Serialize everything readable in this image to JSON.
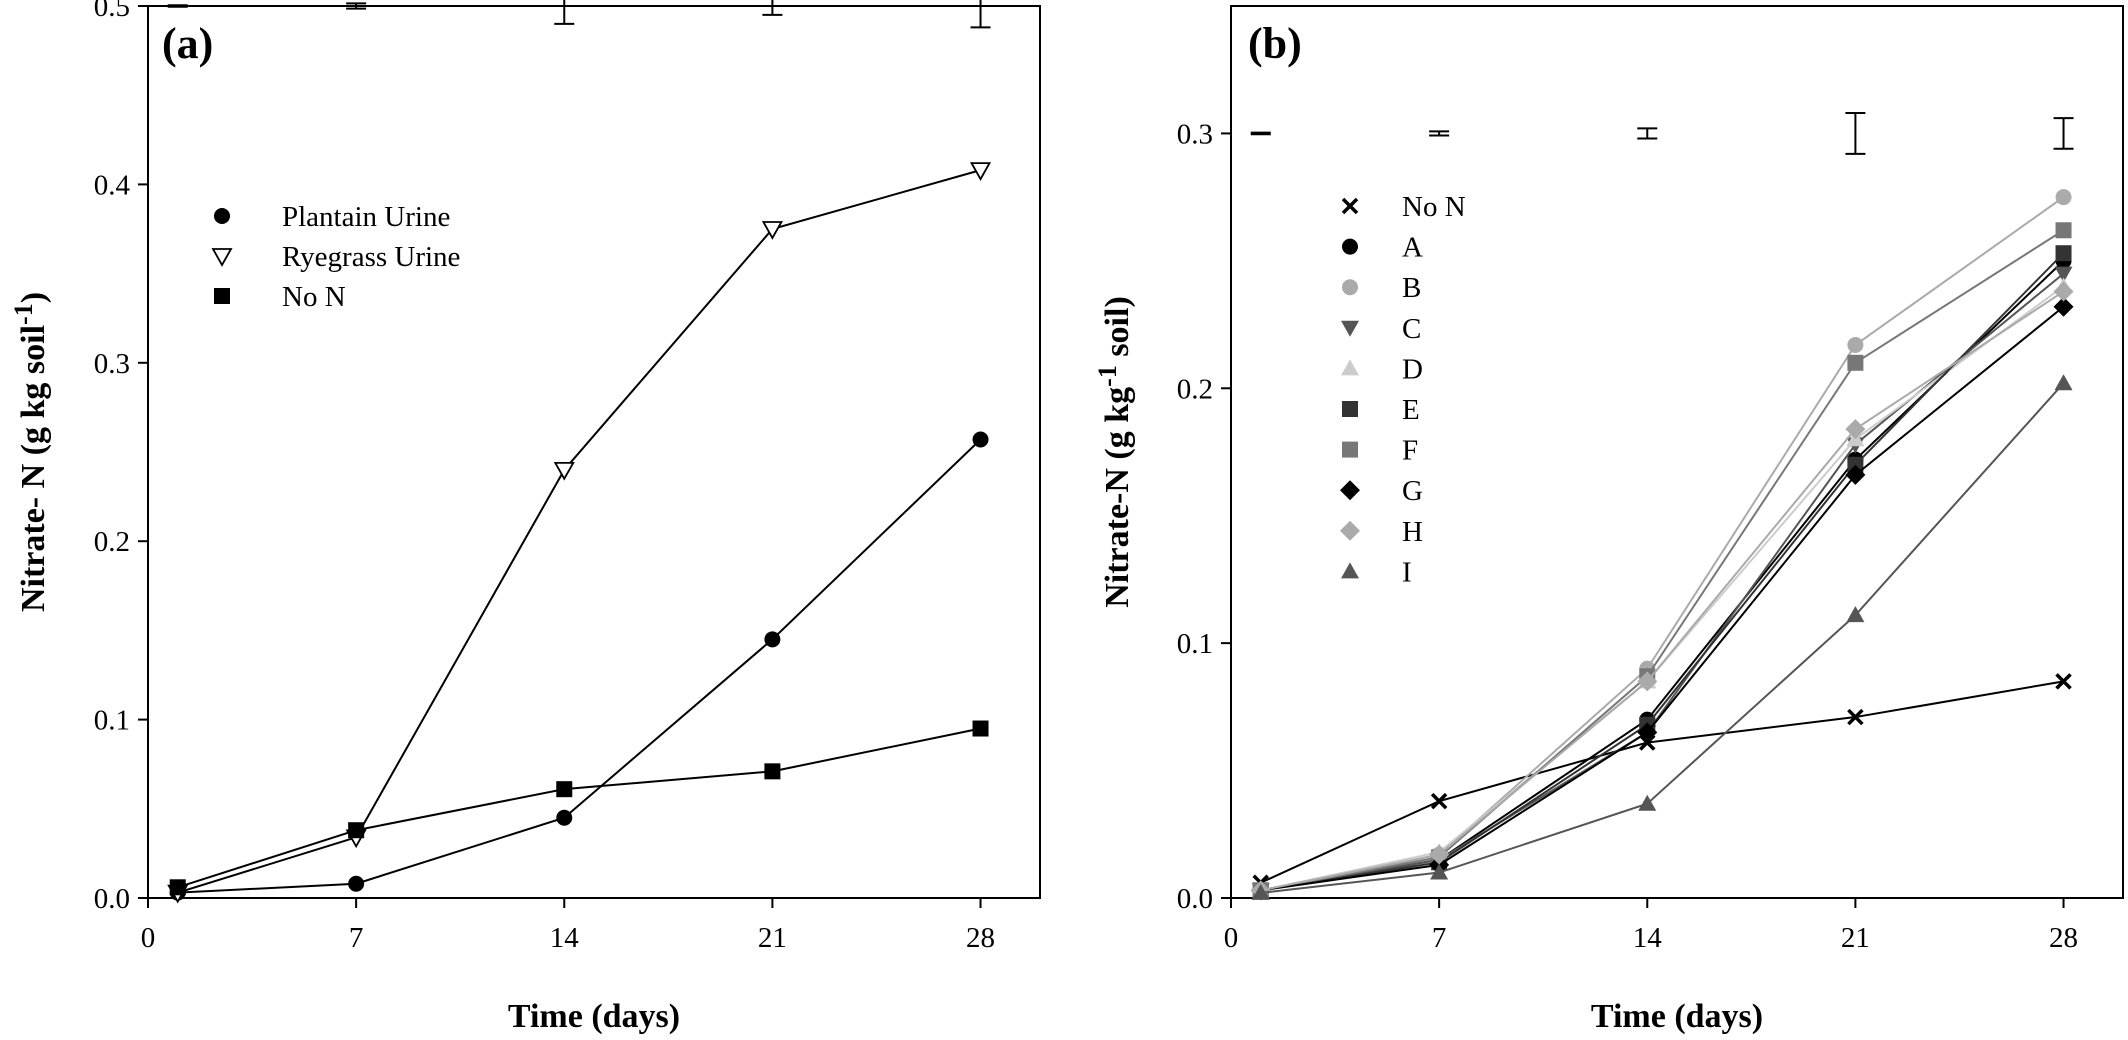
{
  "chart_data": [
    {
      "type": "line",
      "panel_label": "(a)",
      "xlabel": "Time (days)",
      "ylabel": "Nitrate- N (g kg soil",
      "ylabel_sup": "-1",
      "ylabel_suffix": ")",
      "xlim": [
        0,
        30
      ],
      "ylim": [
        0,
        0.5
      ],
      "xticks": [
        0,
        7,
        14,
        21,
        28
      ],
      "yticks": [
        0.0,
        0.1,
        0.2,
        0.3,
        0.4,
        0.5
      ],
      "ytick_labels": [
        "0.0",
        "0.1",
        "0.2",
        "0.3",
        "0.4",
        "0.5"
      ],
      "grid": false,
      "legend_position": "upper-left",
      "x": [
        1,
        7,
        14,
        21,
        28
      ],
      "series": [
        {
          "name": "Plantain Urine",
          "marker": "circle",
          "color": "#000000",
          "values": [
            0.003,
            0.008,
            0.045,
            0.145,
            0.257
          ]
        },
        {
          "name": "Ryegrass Urine",
          "marker": "triangle-down-open",
          "color": "#000000",
          "values": [
            0.003,
            0.034,
            0.24,
            0.375,
            0.408
          ]
        },
        {
          "name": "No N",
          "marker": "square",
          "color": "#000000",
          "values": [
            0.006,
            0.038,
            0.061,
            0.071,
            0.095
          ]
        }
      ],
      "error_bars": {
        "y": 0.5,
        "half_widths": [
          0.0004,
          0.0015,
          0.01,
          0.005,
          0.012
        ]
      }
    },
    {
      "type": "line",
      "panel_label": "(b)",
      "xlabel": "Time (days)",
      "ylabel": "Nitrate-N (g kg",
      "ylabel_sup": "-1",
      "ylabel_suffix": " soil)",
      "xlim": [
        0,
        30
      ],
      "ylim": [
        0,
        0.35
      ],
      "xticks": [
        0,
        7,
        14,
        21,
        28
      ],
      "yticks": [
        0.0,
        0.1,
        0.2,
        0.3
      ],
      "ytick_labels": [
        "0.0",
        "0.1",
        "0.2",
        "0.3"
      ],
      "grid": false,
      "legend_position": "upper-left",
      "x": [
        1,
        7,
        14,
        21,
        28
      ],
      "series": [
        {
          "name": "No N",
          "marker": "x",
          "color": "#000000",
          "values": [
            0.006,
            0.038,
            0.061,
            0.071,
            0.085
          ]
        },
        {
          "name": "A",
          "marker": "circle",
          "color": "#000000",
          "values": [
            0.003,
            0.015,
            0.07,
            0.172,
            0.25
          ]
        },
        {
          "name": "B",
          "marker": "circle",
          "color": "#aaaaaa",
          "values": [
            0.003,
            0.017,
            0.09,
            0.217,
            0.275
          ]
        },
        {
          "name": "C",
          "marker": "triangle-down",
          "color": "#555555",
          "values": [
            0.003,
            0.015,
            0.065,
            0.178,
            0.245
          ]
        },
        {
          "name": "D",
          "marker": "triangle-up",
          "color": "#cccccc",
          "values": [
            0.003,
            0.018,
            0.085,
            0.18,
            0.24
          ]
        },
        {
          "name": "E",
          "marker": "square",
          "color": "#333333",
          "values": [
            0.003,
            0.014,
            0.068,
            0.17,
            0.253
          ]
        },
        {
          "name": "F",
          "marker": "square",
          "color": "#777777",
          "values": [
            0.003,
            0.016,
            0.087,
            0.21,
            0.262
          ]
        },
        {
          "name": "G",
          "marker": "diamond",
          "color": "#000000",
          "values": [
            0.003,
            0.013,
            0.065,
            0.166,
            0.232
          ]
        },
        {
          "name": "H",
          "marker": "diamond",
          "color": "#aaaaaa",
          "values": [
            0.003,
            0.017,
            0.085,
            0.184,
            0.238
          ]
        },
        {
          "name": "I",
          "marker": "triangle-up",
          "color": "#555555",
          "values": [
            0.002,
            0.01,
            0.037,
            0.111,
            0.202
          ]
        }
      ],
      "error_bars": {
        "y": 0.3,
        "half_widths": [
          0.0003,
          0.0008,
          0.002,
          0.008,
          0.006
        ]
      }
    }
  ]
}
